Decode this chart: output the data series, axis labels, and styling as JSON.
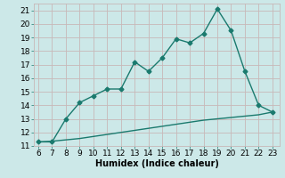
{
  "xlabel": "Humidex (Indice chaleur)",
  "x_main": [
    6,
    7,
    8,
    9,
    10,
    11,
    12,
    13,
    14,
    15,
    16,
    17,
    18,
    19,
    20,
    21,
    22,
    23
  ],
  "y_main": [
    11.3,
    11.3,
    13.0,
    14.2,
    14.7,
    15.2,
    15.2,
    17.2,
    16.5,
    17.5,
    18.9,
    18.6,
    19.3,
    21.1,
    19.5,
    16.5,
    14.0,
    13.5
  ],
  "x_lower": [
    6,
    7,
    8,
    9,
    10,
    11,
    12,
    13,
    14,
    15,
    16,
    17,
    18,
    19,
    20,
    21,
    22,
    23
  ],
  "y_lower": [
    11.3,
    11.35,
    11.45,
    11.55,
    11.7,
    11.85,
    12.0,
    12.15,
    12.3,
    12.45,
    12.6,
    12.75,
    12.9,
    13.0,
    13.1,
    13.2,
    13.3,
    13.5
  ],
  "line_color": "#1a7a6e",
  "bg_color": "#cce8e8",
  "grid_color": "#c8b8b8",
  "ylim": [
    11,
    21.5
  ],
  "xlim": [
    5.7,
    23.5
  ],
  "yticks": [
    11,
    12,
    13,
    14,
    15,
    16,
    17,
    18,
    19,
    20,
    21
  ],
  "xticks": [
    6,
    7,
    8,
    9,
    10,
    11,
    12,
    13,
    14,
    15,
    16,
    17,
    18,
    19,
    20,
    21,
    22,
    23
  ],
  "marker": "D",
  "marker_size": 2.5,
  "linewidth": 1.0,
  "xlabel_fontsize": 7,
  "tick_fontsize": 6.5
}
